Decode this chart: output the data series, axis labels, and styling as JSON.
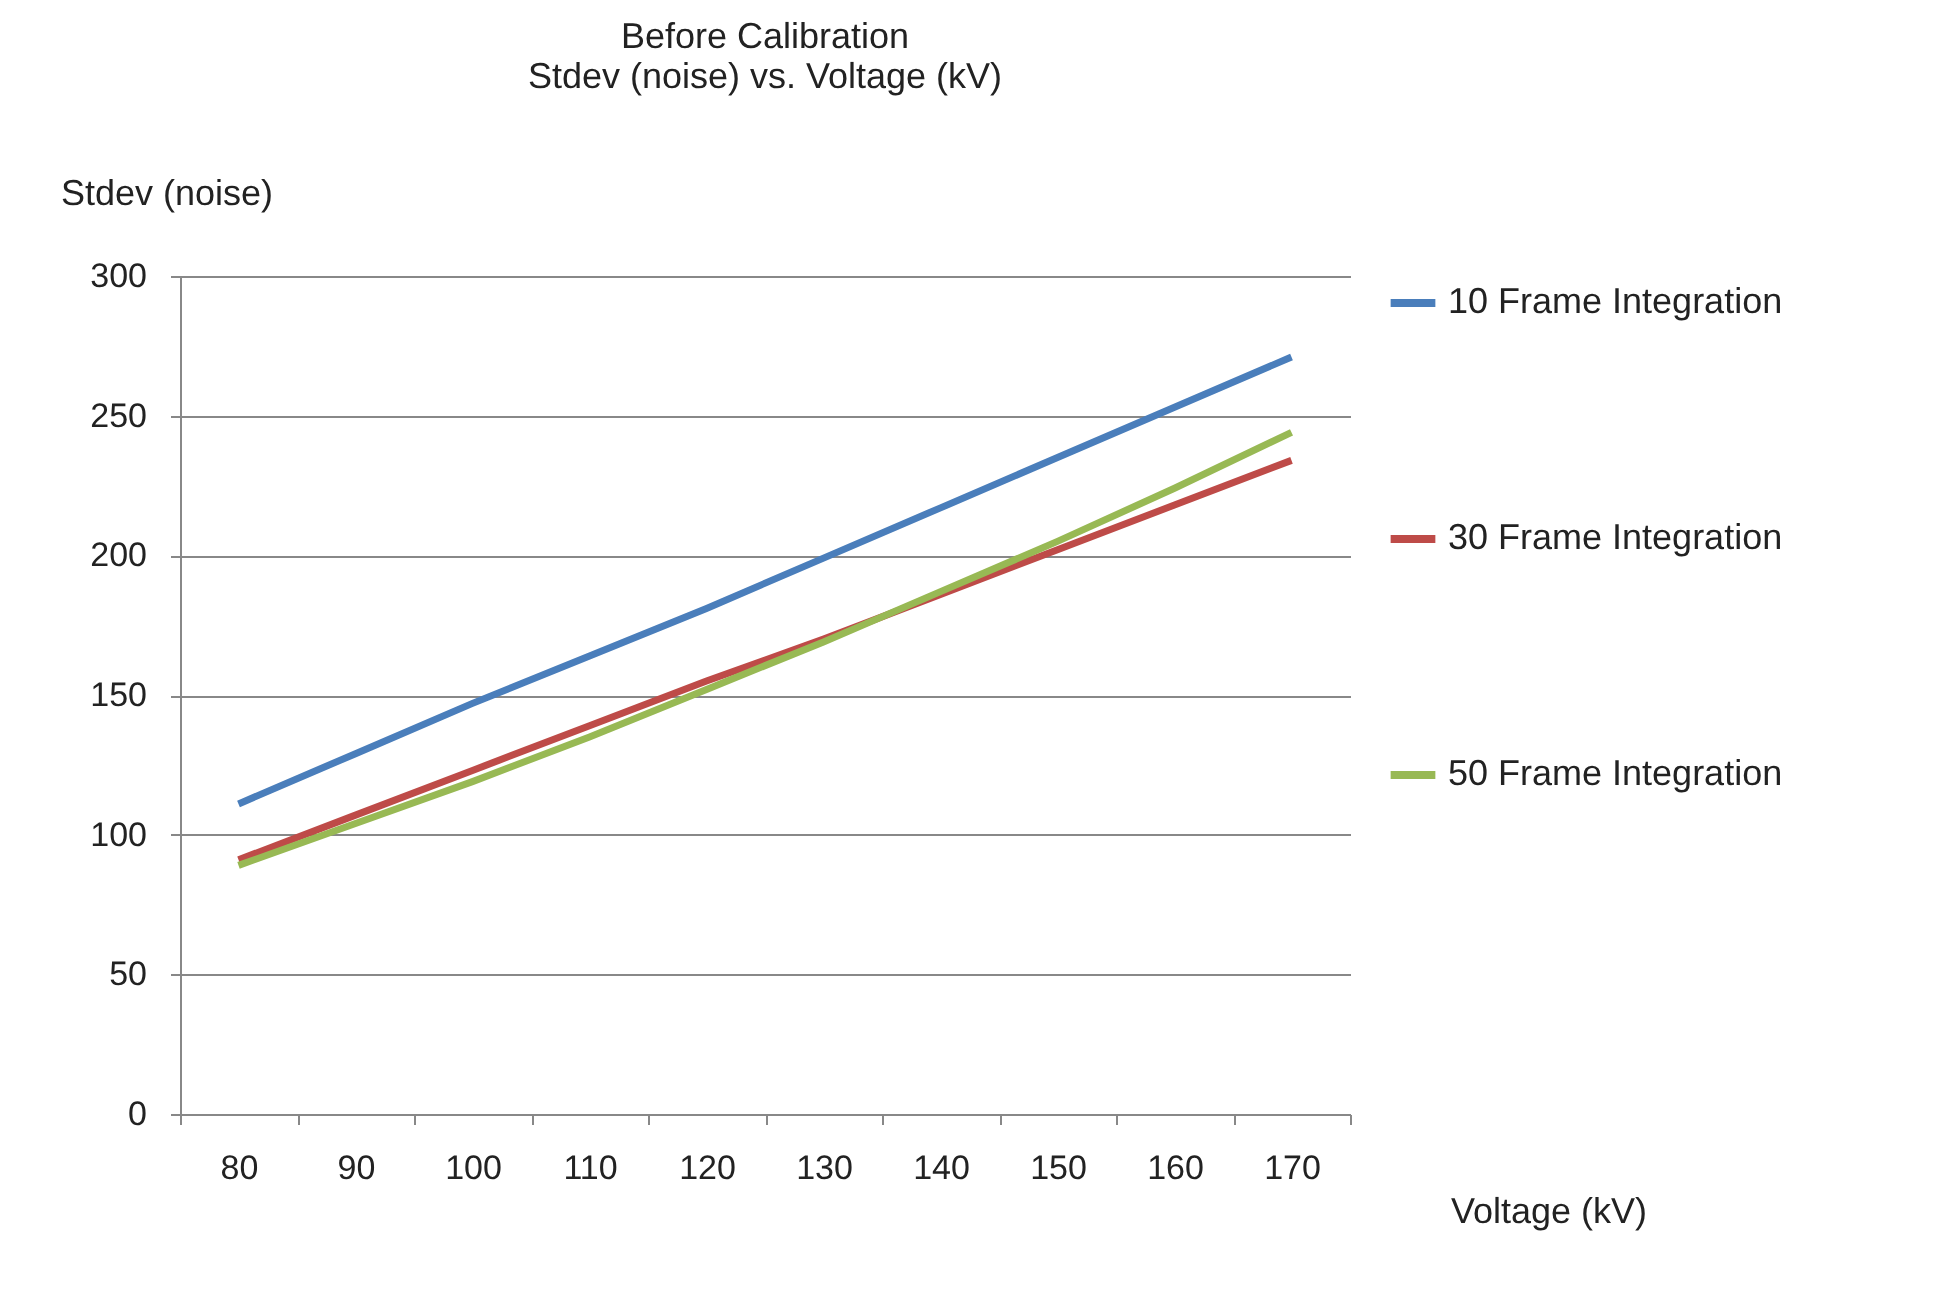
{
  "chart_data": {
    "type": "line",
    "title": [
      "Before Calibration",
      "Stdev (noise) vs. Voltage (kV)"
    ],
    "xlabel": "Voltage (kV)",
    "ylabel": "Stdev (noise)",
    "categories": [
      "80",
      "90",
      "100",
      "110",
      "120",
      "130",
      "140",
      "150",
      "160",
      "170"
    ],
    "series": [
      {
        "name": "10 Frame Integration",
        "color": "#4a7ebb",
        "values": [
          111,
          129,
          147,
          164,
          181,
          199,
          217,
          235,
          253,
          271
        ]
      },
      {
        "name": "30 Frame Integration",
        "color": "#be4b48",
        "values": [
          91,
          107,
          123,
          139,
          155,
          170,
          186,
          202,
          218,
          234
        ]
      },
      {
        "name": "50 Frame Integration",
        "color": "#98b954",
        "values": [
          89,
          104,
          119,
          135,
          152,
          169,
          187,
          205,
          224,
          244
        ]
      }
    ],
    "ylim": [
      0,
      300
    ],
    "yticks": [
      0,
      50,
      100,
      150,
      200,
      250,
      300
    ],
    "grid": "y",
    "legend": "right",
    "marker": "none",
    "line_style": "solid"
  }
}
